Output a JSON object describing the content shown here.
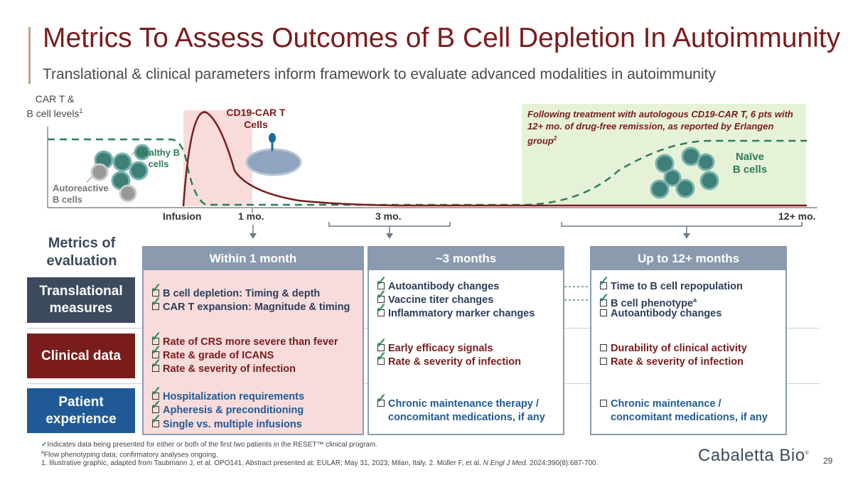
{
  "title": "Metrics To Assess Outcomes of B Cell Depletion In Autoimmunity",
  "subtitle": "Translational & clinical parameters inform framework to evaluate advanced modalities in autoimmunity",
  "graph": {
    "y_label_line1": "CAR T &",
    "y_label_line2": "B cell levels",
    "y_label_sup": "1",
    "cd19_label_line1": "CD19-CAR T",
    "cd19_label_line2": "Cells",
    "healthy_label_line1": "Healthy B",
    "healthy_label_line2": "cells",
    "autoreactive_label_line1": "Autoreactive",
    "autoreactive_label_line2": "B cells",
    "naive_label_line1": "Naïve",
    "naive_label_line2": "B cells",
    "green_note": "Following treatment with autologous CD19-CAR T, 6 pts with 12+ mo. of drug-free remission, as reported by Erlangen group",
    "green_note_sup": "2",
    "ticks": [
      "Infusion",
      "1 mo.",
      "3 mo.",
      "12+ mo."
    ]
  },
  "metrics_label_line1": "Metrics of",
  "metrics_label_line2": "evaluation",
  "rows": {
    "translational_line1": "Translational",
    "translational_line2": "measures",
    "clinical": "Clinical data",
    "patient_line1": "Patient",
    "patient_line2": "experience"
  },
  "columns": {
    "col1": {
      "header": "Within 1 month",
      "translational": [
        "B cell depletion: Timing & depth",
        "CAR T expansion: Magnitude & timing"
      ],
      "clinical": [
        "Rate of CRS more severe than fever",
        "Rate & grade of ICANS",
        "Rate & severity of infection"
      ],
      "patient": [
        "Hospitalization requirements",
        "Apheresis & preconditioning",
        "Single vs. multiple infusions"
      ]
    },
    "col2": {
      "header": "~3 months",
      "translational": [
        "Autoantibody changes",
        "Vaccine titer changes",
        "Inflammatory marker changes"
      ],
      "clinical": [
        "Early efficacy signals",
        "Rate & severity of infection"
      ],
      "patient_line1": "Chronic maintenance therapy /",
      "patient_line2": "concomitant medications, if any"
    },
    "col3": {
      "header": "Up to 12+ months",
      "translational_1": "Time to B cell repopulation",
      "translational_2": "B cell phenotype",
      "translational_2_sup": "a",
      "translational_3": "Autoantibody changes",
      "clinical": [
        "Durability of clinical activity",
        "Rate & severity of infection"
      ],
      "patient_line1": "Chronic maintenance /",
      "patient_line2": "concomitant medications, if any"
    }
  },
  "footnotes": {
    "line1": "Indicates data being presented for either or both of the first two patients in the RESET™ clinical program.",
    "line2_sup": "a",
    "line2": "Flow phenotyping data; confirmatory analyses ongoing.",
    "line3a": "1. Illustrative graphic, adapted from Taubmann J, et al. OPO141. Abstract presented at: EULAR; May 31, 2023; Milan, Italy.  2. Müller F, et al. ",
    "line3_italic": "N Engl J Med.",
    "line3b": " 2024;390(8):687-700."
  },
  "logo": "Cabaletta Bio",
  "logo_mark": "®",
  "page_number": "29",
  "colors": {
    "title": "#7a1c1c",
    "translational_row": "#3b4a5c",
    "clinical_row": "#7a1c1c",
    "patient_row": "#1f5a96",
    "column_header": "#8a9bb0",
    "pink_fill": "#f8dcdc",
    "green_fill": "#e6f2d8",
    "car_t_curve": "#7a1c1c",
    "b_cell_curve": "#2e7d5a"
  }
}
